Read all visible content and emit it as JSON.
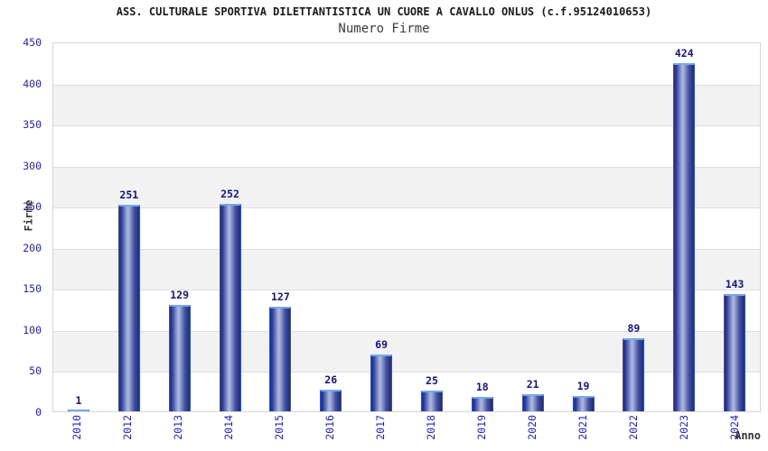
{
  "header": {
    "title": "ASS. CULTURALE SPORTIVA DILETTANTISTICA UN CUORE A CAVALLO ONLUS (c.f.95124010653)",
    "subtitle": "Numero Firme"
  },
  "chart_data": {
    "type": "bar",
    "title": "ASS. CULTURALE SPORTIVA DILETTANTISTICA UN CUORE A CAVALLO ONLUS (c.f.95124010653)",
    "subtitle": "Numero Firme",
    "xlabel": "Anno",
    "ylabel": "Firme",
    "categories": [
      "2010",
      "2012",
      "2013",
      "2014",
      "2015",
      "2016",
      "2017",
      "2018",
      "2019",
      "2020",
      "2021",
      "2022",
      "2023",
      "2024"
    ],
    "values": [
      1,
      251,
      129,
      252,
      127,
      26,
      69,
      25,
      18,
      21,
      19,
      89,
      424,
      143
    ],
    "ylim": [
      0,
      450
    ],
    "ytick_step": 50,
    "yticks": [
      0,
      50,
      100,
      150,
      200,
      250,
      300,
      350,
      400,
      450
    ],
    "grid": true,
    "legend": "none",
    "colors": {
      "bar_border": "#2b52cc",
      "bar_top_edge": "#79a8e8",
      "bar_dark": "#1f2b7e",
      "bar_light": "#b0bade",
      "tick_label": "#2222cc",
      "value_label": "#141487",
      "band": "#f2f2f2",
      "gridline": "#dedede",
      "title": "#1a1a1a",
      "subtitle": "#3d3d3d",
      "axis_title": "#333333"
    }
  }
}
